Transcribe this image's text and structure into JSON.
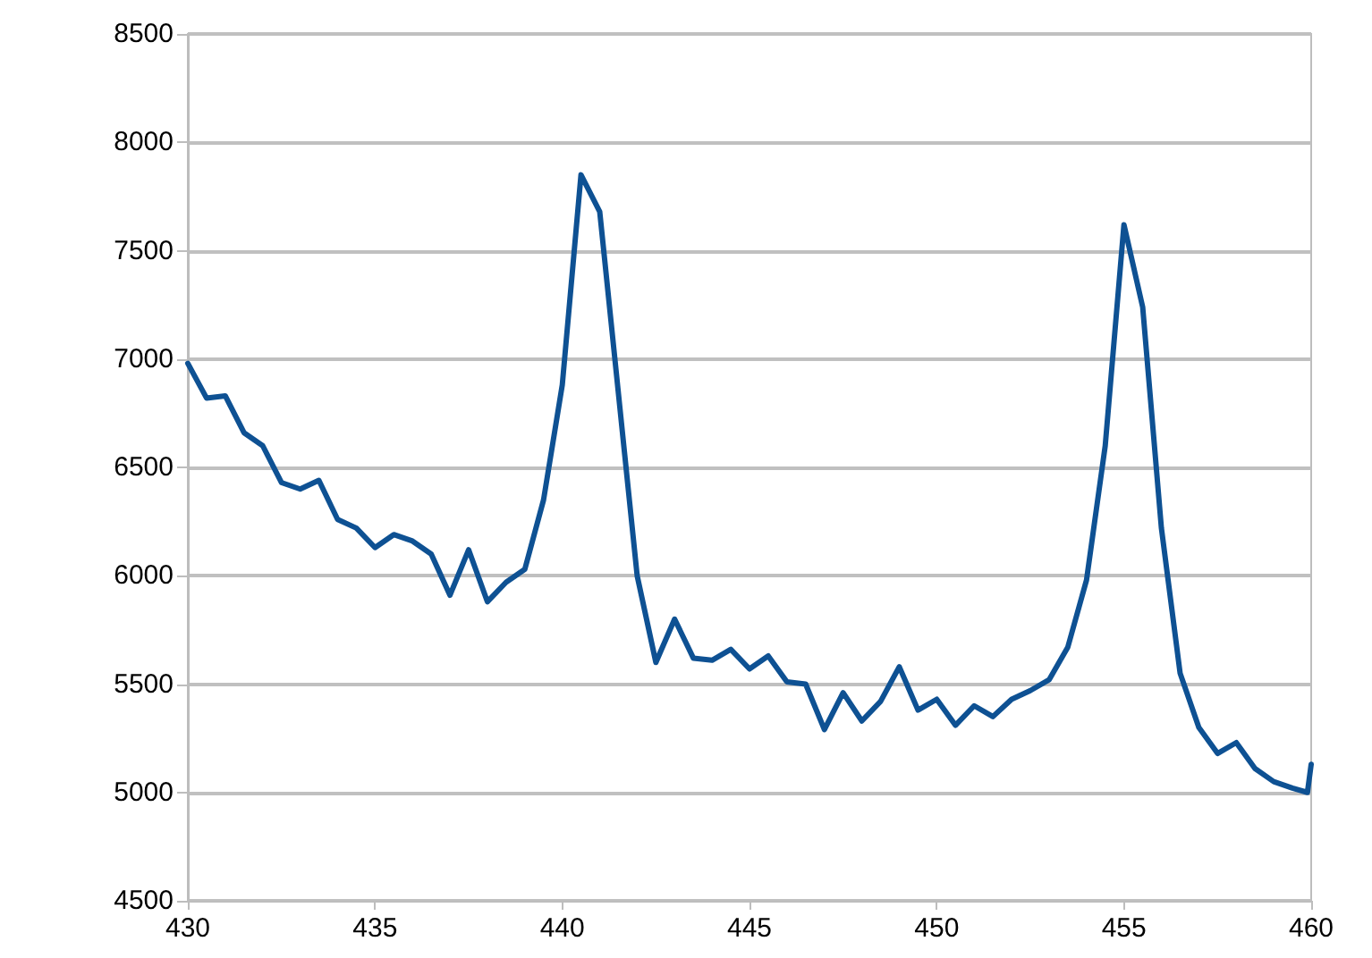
{
  "chart_data": {
    "type": "line",
    "x": [
      430,
      430.5,
      431,
      431.5,
      432,
      432.5,
      433,
      433.5,
      434,
      434.5,
      435,
      435.5,
      436,
      436.5,
      437,
      437.5,
      438,
      438.5,
      439,
      439.5,
      440,
      440.5,
      441,
      441.5,
      442,
      442.5,
      443,
      443.5,
      444,
      444.5,
      445,
      445.5,
      446,
      446.5,
      447,
      447.5,
      448,
      448.5,
      449,
      449.5,
      450,
      450.5,
      451,
      451.5,
      452,
      452.5,
      453,
      453.5,
      454,
      454.5,
      455,
      455.5,
      456,
      456.5,
      457,
      457.5,
      458,
      458.5,
      459,
      459.5,
      459.9,
      460
    ],
    "series": [
      {
        "color": "#0e5193",
        "values": [
          6980,
          6820,
          6830,
          6660,
          6600,
          6430,
          6400,
          6440,
          6260,
          6220,
          6130,
          6190,
          6160,
          6100,
          5910,
          6120,
          5880,
          5970,
          6030,
          6350,
          6880,
          7850,
          7680,
          6840,
          6000,
          5600,
          5800,
          5620,
          5610,
          5660,
          5570,
          5630,
          5510,
          5500,
          5290,
          5460,
          5330,
          5420,
          5580,
          5380,
          5430,
          5310,
          5400,
          5350,
          5430,
          5470,
          5520,
          5670,
          5980,
          6600,
          7620,
          7240,
          6220,
          5550,
          5300,
          5180,
          5230,
          5110,
          5050,
          5020,
          5000,
          5130
        ]
      }
    ],
    "xlim": [
      430,
      460
    ],
    "xticks": [
      430,
      435,
      440,
      445,
      450,
      455,
      460
    ],
    "ylim": [
      4500,
      8500
    ],
    "yticks": [
      4500,
      5000,
      5500,
      6000,
      6500,
      7000,
      7500,
      8000,
      8500
    ],
    "grid": "y",
    "marker": "none",
    "line_style": "solid"
  }
}
